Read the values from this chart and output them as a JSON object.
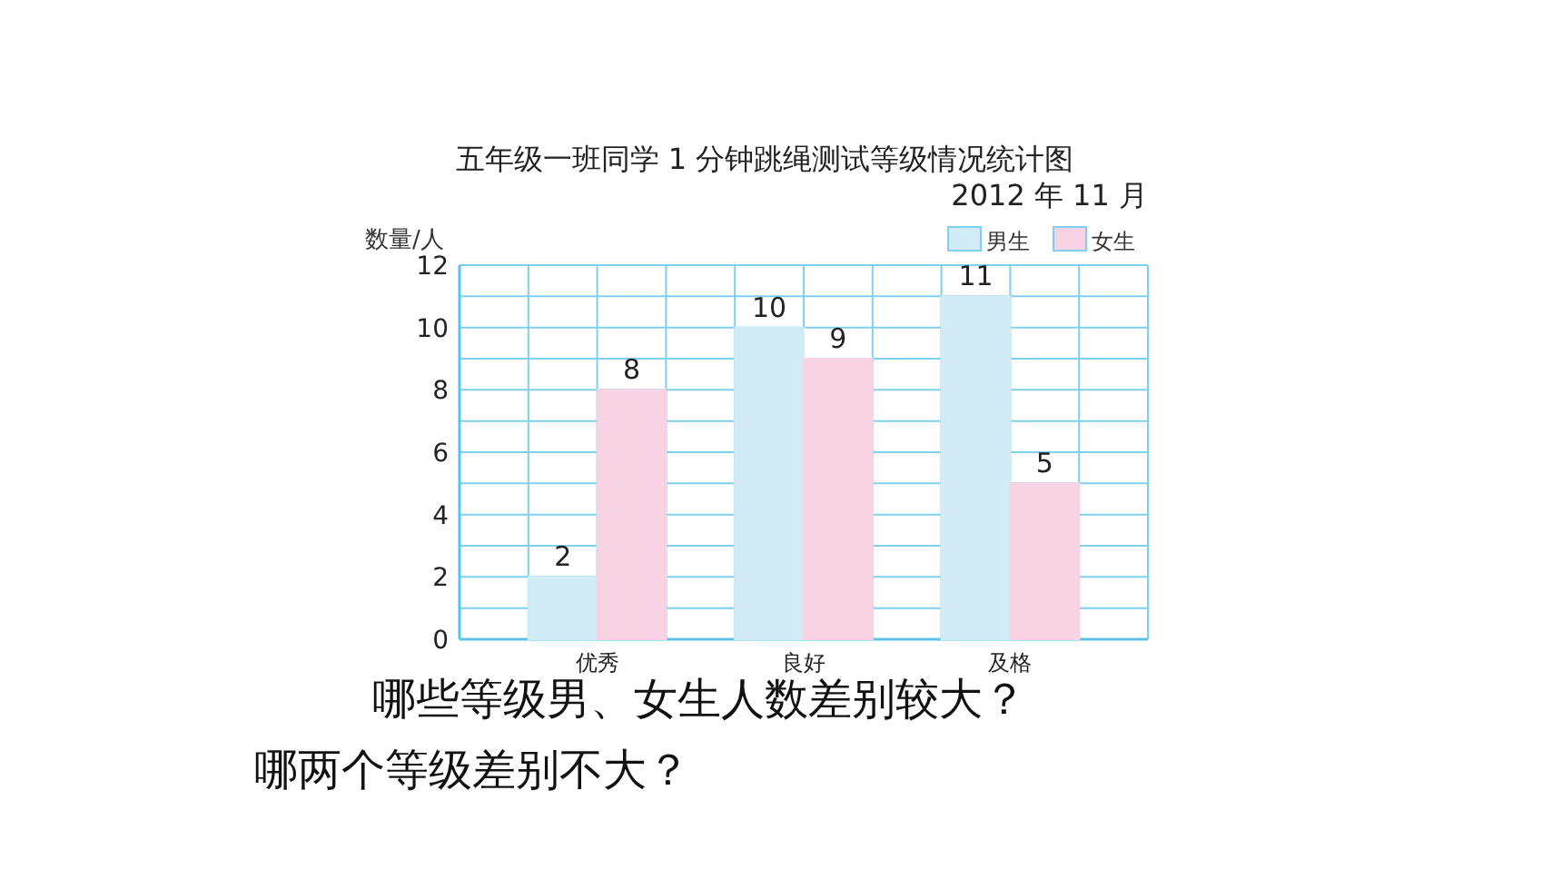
{
  "chart_data": {
    "type": "bar",
    "title": "五年级一班同学 1 分钟跳绳测试等级情况统计图",
    "subtitle": "2012 年 11 月",
    "ylabel": "数量/人",
    "categories": [
      "优秀",
      "良好",
      "及格"
    ],
    "series": [
      {
        "name": "男生",
        "color": "#d1ecf7",
        "values": [
          2,
          10,
          11
        ]
      },
      {
        "name": "女生",
        "color": "#f8d3e3",
        "values": [
          8,
          9,
          5
        ]
      }
    ],
    "ylim": [
      0,
      12
    ],
    "yticks": [
      0,
      2,
      4,
      6,
      8,
      10,
      12
    ],
    "grid": true,
    "legend": "top right",
    "data_labels": true,
    "annotations": [
      "哪些等级男、女生人数差别较大？",
      "哪两个等级差别不大？"
    ]
  }
}
